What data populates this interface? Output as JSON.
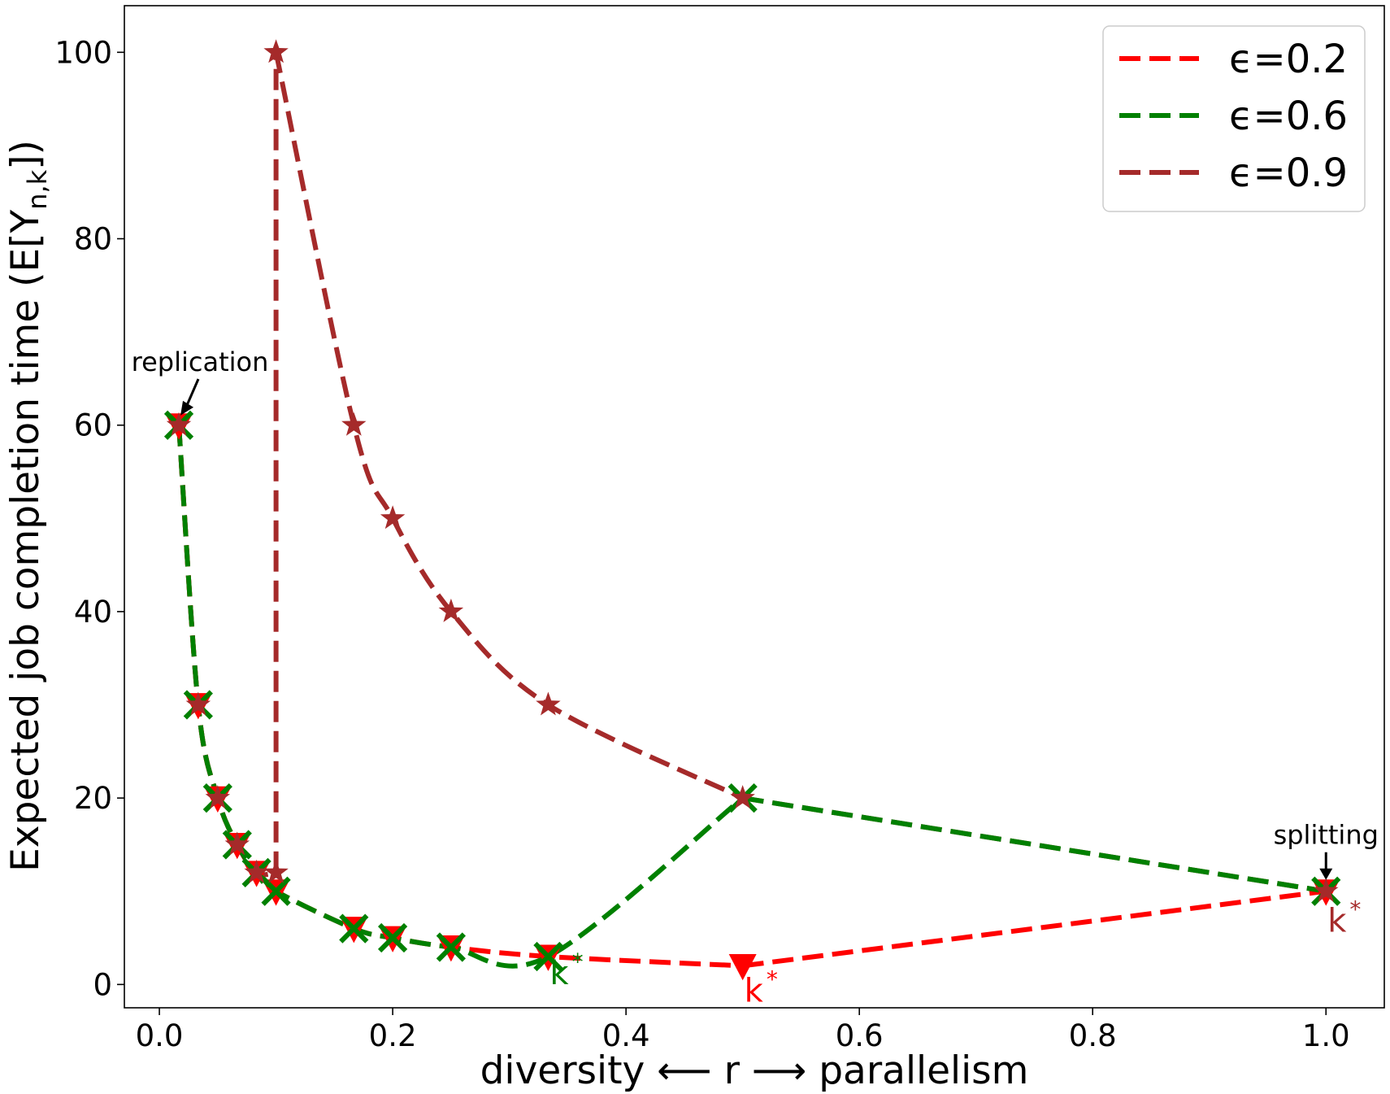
{
  "chart_data": {
    "type": "line",
    "title": "",
    "xlabel": {
      "left": "diversity",
      "mid": "r",
      "right": "parallelism"
    },
    "ylabel": {
      "main": "Expected job completion time (E[Y",
      "sub": "n,k",
      "tail": "])"
    },
    "xlim": [
      -0.03,
      1.05
    ],
    "ylim": [
      -2.5,
      105
    ],
    "x_ticks": [
      0.0,
      0.2,
      0.4,
      0.6,
      0.8,
      1.0
    ],
    "x_tick_labels": [
      "0.0",
      "0.2",
      "0.4",
      "0.6",
      "0.8",
      "1.0"
    ],
    "y_ticks": [
      0,
      20,
      40,
      60,
      80,
      100
    ],
    "y_tick_labels": [
      "0",
      "20",
      "40",
      "60",
      "80",
      "100"
    ],
    "grid": false,
    "legend_position": "top-right",
    "series": [
      {
        "name": "ϵ=0.2",
        "color": "#ff0000",
        "marker": "triangle-down",
        "x": [
          0.0167,
          0.0333,
          0.05,
          0.0667,
          0.0833,
          0.1,
          0.1667,
          0.2,
          0.25,
          0.3333,
          0.5,
          1.0
        ],
        "y": [
          60,
          30,
          20,
          15,
          12,
          10,
          6,
          5,
          4,
          3,
          2,
          10
        ]
      },
      {
        "name": "ϵ=0.6",
        "color": "#008000",
        "marker": "x",
        "x": [
          0.0167,
          0.0333,
          0.05,
          0.0667,
          0.0833,
          0.1,
          0.1667,
          0.2,
          0.25,
          0.3333,
          0.5,
          1.0
        ],
        "y": [
          60,
          30,
          20,
          15,
          12,
          10,
          6,
          5,
          4,
          3,
          20,
          10
        ]
      },
      {
        "name": "ϵ=0.9",
        "color": "#a52a2a",
        "marker": "star",
        "x": [
          0.0167,
          0.0333,
          0.05,
          0.0667,
          0.0833,
          0.1,
          0.1,
          0.1667,
          0.2,
          0.25,
          0.3333,
          0.5,
          1.0
        ],
        "y": [
          60,
          30,
          20,
          15,
          12,
          12,
          100,
          60,
          50,
          40,
          30,
          20,
          10
        ]
      }
    ],
    "annotations": [
      {
        "text": "replication",
        "x": 0.0167,
        "y": 60,
        "kind": "arrow"
      },
      {
        "text": "splitting",
        "x": 1.0,
        "y": 10,
        "kind": "arrow"
      },
      {
        "text": "k",
        "sup": "*",
        "x": 0.3333,
        "y": 3,
        "color": "#008000",
        "kind": "kstar"
      },
      {
        "text": "k",
        "sup": "*",
        "x": 0.5,
        "y": 2,
        "color": "#ff0000",
        "kind": "kstar"
      },
      {
        "text": "k",
        "sup": "*",
        "x": 1.0,
        "y": 10,
        "color": "#a52a2a",
        "kind": "kstar"
      }
    ]
  }
}
